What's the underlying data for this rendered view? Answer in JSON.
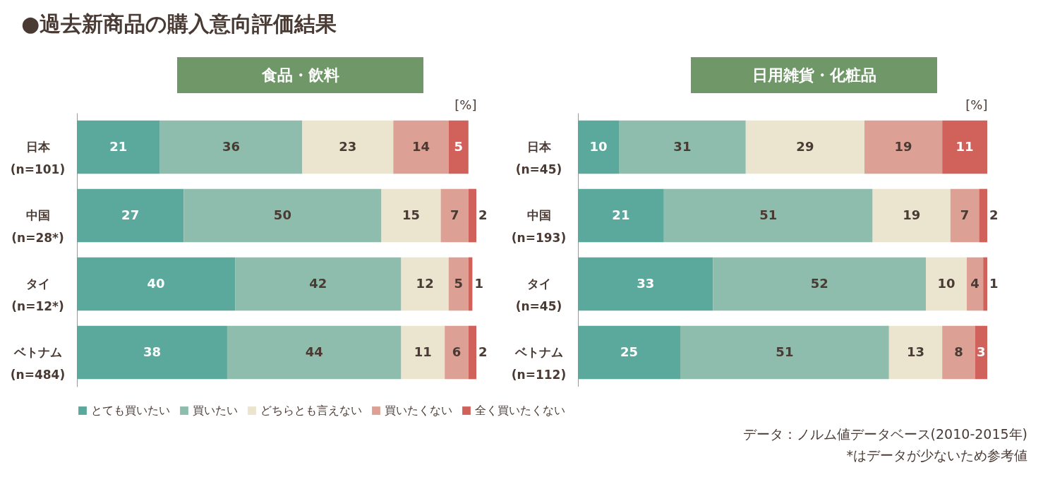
{
  "chart_data": [
    {
      "type": "other",
      "title": "●過去新商品の購入意向評価結果",
      "annotations": [
        "データ：ノルム値データベース(2010-2015年)",
        "*はデータが少ないため参考値"
      ]
    },
    {
      "type": "bar",
      "orientation": "horizontal",
      "stacked": true,
      "title": "食品・飲料",
      "xlabel": "[%]",
      "xlim": [
        0,
        101
      ],
      "tick_labels": "y",
      "data_labels": true,
      "legend": "bottom",
      "grid": false,
      "categories": [
        "日本\n(n=101)",
        "中国\n(n=28*)",
        "タイ\n(n=12*)",
        "ベトナム\n(n=484)"
      ],
      "series": [
        {
          "name": "とても買いたい",
          "color": "#5ba89c",
          "values": [
            21,
            27,
            40,
            38
          ]
        },
        {
          "name": "買いたい",
          "color": "#8fbdad",
          "values": [
            36,
            50,
            42,
            44
          ]
        },
        {
          "name": "どちらとも言えない",
          "color": "#ebe5cf",
          "values": [
            23,
            15,
            12,
            11
          ]
        },
        {
          "name": "買いたくない",
          "color": "#dca194",
          "values": [
            14,
            7,
            5,
            6
          ]
        },
        {
          "name": "全く買いたくない",
          "color": "#d0625b",
          "values": [
            5,
            2,
            1,
            2
          ]
        }
      ]
    },
    {
      "type": "bar",
      "orientation": "horizontal",
      "stacked": true,
      "title": "日用雑貨・化粧品",
      "xlabel": "[%]",
      "xlim": [
        0,
        100
      ],
      "tick_labels": "y",
      "data_labels": true,
      "grid": false,
      "categories": [
        "日本\n(n=45)",
        "中国\n(n=193)",
        "タイ\n(n=45)",
        "ベトナム\n(n=112)"
      ],
      "series": [
        {
          "color": "#5ba89c",
          "values": [
            10,
            21,
            33,
            25
          ]
        },
        {
          "color": "#8fbdad",
          "values": [
            31,
            51,
            52,
            51
          ]
        },
        {
          "color": "#ebe5cf",
          "values": [
            29,
            19,
            10,
            13
          ]
        },
        {
          "color": "#dca194",
          "values": [
            19,
            7,
            4,
            8
          ]
        },
        {
          "color": "#d0625b",
          "values": [
            11,
            2,
            1,
            3
          ]
        }
      ]
    }
  ]
}
